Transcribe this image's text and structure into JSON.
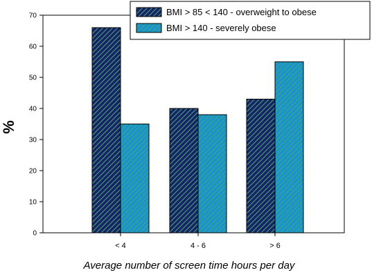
{
  "chart_data": {
    "type": "bar",
    "categories": [
      "< 4",
      "4 - 6",
      "> 6"
    ],
    "series": [
      {
        "name": "BMI > 85 < 140 - overweight to obese",
        "values": [
          66,
          40,
          43
        ],
        "color": "#1a1f73"
      },
      {
        "name": "BMI > 140 - severely obese",
        "values": [
          35,
          38,
          55
        ],
        "color": "#1a8fdc"
      }
    ],
    "title": "",
    "xlabel": "Average number of screen time hours per day",
    "ylabel": "%",
    "ylim": [
      0,
      70
    ],
    "yticks": [
      0,
      10,
      20,
      30,
      40,
      50,
      60,
      70
    ],
    "grid": false,
    "legend_position": "top-right"
  }
}
